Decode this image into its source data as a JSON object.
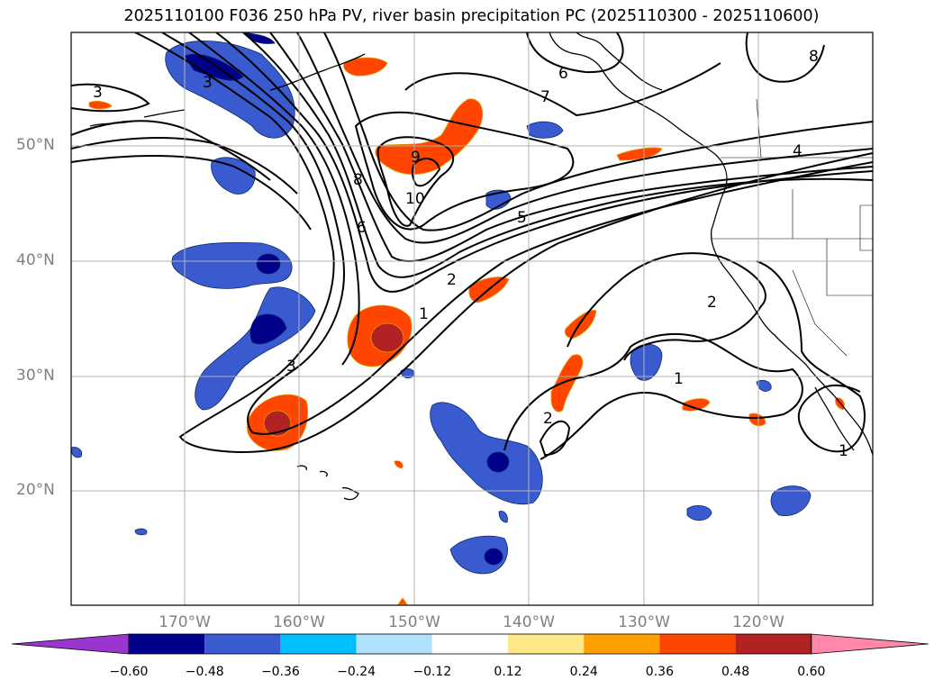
{
  "title": "2025110100 F036 250 hPa PV, river basin precipitation PC (2025110300 - 2025110600)",
  "latitude_labels": [
    "50°N",
    "40°N",
    "30°N",
    "20°N"
  ],
  "longitude_labels": [
    "170°W",
    "160°W",
    "150°W",
    "140°W",
    "130°W",
    "120°W"
  ],
  "pv_contour_labels": [
    "3",
    "3",
    "8",
    "9",
    "10",
    "6",
    "7",
    "6",
    "8",
    "4",
    "5",
    "2",
    "1",
    "3",
    "2",
    "2",
    "1",
    "1"
  ],
  "colorbar": {
    "tick_labels": [
      "−0.60",
      "−0.48",
      "−0.36",
      "−0.24",
      "−0.12",
      "0.12",
      "0.24",
      "0.36",
      "0.48",
      "0.60"
    ],
    "colors": [
      "#9a35d0",
      "#00008b",
      "#3a5bd0",
      "#00bfff",
      "#b0e2ff",
      "#ffffff",
      "#ffe88a",
      "#ffa000",
      "#ff4500",
      "#b22222",
      "#ff88aa"
    ]
  }
}
